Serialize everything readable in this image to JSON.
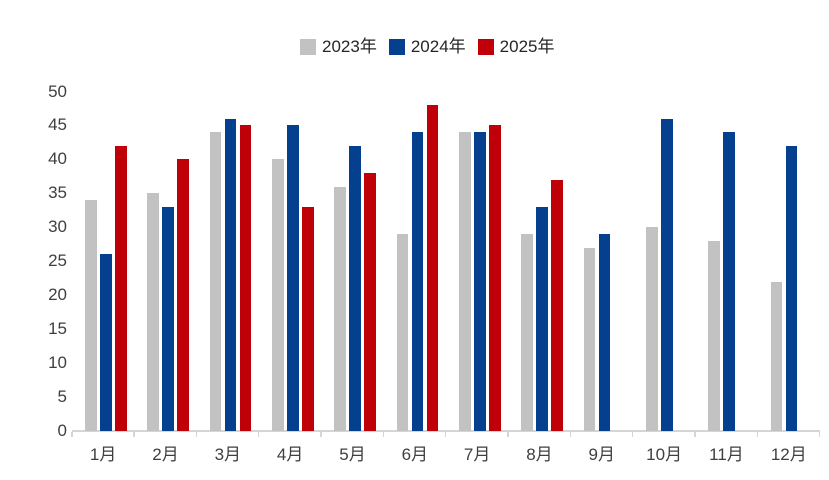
{
  "chart_data": {
    "type": "bar",
    "title": "",
    "categories": [
      "1月",
      "2月",
      "3月",
      "4月",
      "5月",
      "6月",
      "7月",
      "8月",
      "9月",
      "10月",
      "11月",
      "12月"
    ],
    "series": [
      {
        "name": "2023年",
        "color": "#C2C2C2",
        "values": [
          34,
          35,
          44,
          40,
          36,
          29,
          44,
          29,
          27,
          30,
          28,
          22
        ]
      },
      {
        "name": "2024年",
        "color": "#05408F",
        "values": [
          26,
          33,
          46,
          45,
          42,
          44,
          44,
          33,
          29,
          46,
          44,
          42
        ]
      },
      {
        "name": "2025年",
        "color": "#C00008",
        "values": [
          42,
          40,
          45,
          33,
          38,
          48,
          45,
          37,
          null,
          null,
          null,
          null
        ]
      }
    ],
    "xlabel": "",
    "ylabel": "",
    "ylim": [
      0,
      50
    ],
    "ytick_step": 5,
    "yticks": [
      0,
      5,
      10,
      15,
      20,
      25,
      30,
      35,
      40,
      45,
      50
    ],
    "grid": false,
    "legend_position": "top-center"
  },
  "style": {
    "background": "#FFFFFF",
    "axis_line_color": "#D5D5D5",
    "axis_label_color": "#3F3F3F",
    "legend_text_color": "#262626"
  }
}
